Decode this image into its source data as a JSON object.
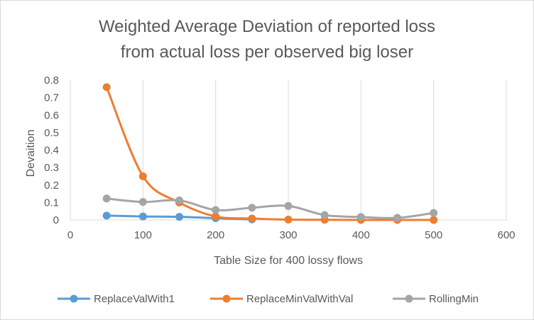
{
  "chart_data": {
    "type": "scatter",
    "title": "Weighted Average Deviation of reported loss from actual loss per observed big loser",
    "title_lines": [
      "Weighted Average Deviation of reported loss",
      "from actual loss per observed big loser"
    ],
    "xlabel": "Table Size for 400 lossy flows",
    "ylabel": "Devaition",
    "xlim": [
      0,
      600
    ],
    "ylim": [
      0,
      0.8
    ],
    "x_ticks": [
      "0",
      "100",
      "200",
      "300",
      "400",
      "500",
      "600"
    ],
    "y_ticks": [
      "0",
      "0.1",
      "0.2",
      "0.3",
      "0.4",
      "0.5",
      "0.6",
      "0.7",
      "0.8"
    ],
    "x_tick_values": [
      0,
      100,
      200,
      300,
      400,
      500,
      600
    ],
    "y_tick_values": [
      0,
      0.1,
      0.2,
      0.3,
      0.4,
      0.5,
      0.6,
      0.7,
      0.8
    ],
    "grid": "vertical",
    "smooth_lines": true,
    "legend_position": "bottom",
    "series": [
      {
        "name": "ReplaceValWith1",
        "color": "#5b9bd5",
        "x": [
          50,
          100,
          150,
          200,
          250
        ],
        "y": [
          0.025,
          0.02,
          0.018,
          0.01,
          0.003
        ]
      },
      {
        "name": "ReplaceMinValWithVal",
        "color": "#ed7d31",
        "x": [
          50,
          100,
          150,
          200,
          250,
          300,
          350,
          400,
          450,
          500
        ],
        "y": [
          0.76,
          0.25,
          0.1,
          0.02,
          0.008,
          0.002,
          0.001,
          0.0,
          0.0,
          0.0
        ]
      },
      {
        "name": "RollingMin",
        "color": "#a5a5a5",
        "x": [
          50,
          100,
          150,
          200,
          250,
          300,
          350,
          400,
          450,
          500
        ],
        "y": [
          0.123,
          0.103,
          0.112,
          0.057,
          0.07,
          0.08,
          0.028,
          0.017,
          0.012,
          0.04
        ]
      }
    ]
  }
}
